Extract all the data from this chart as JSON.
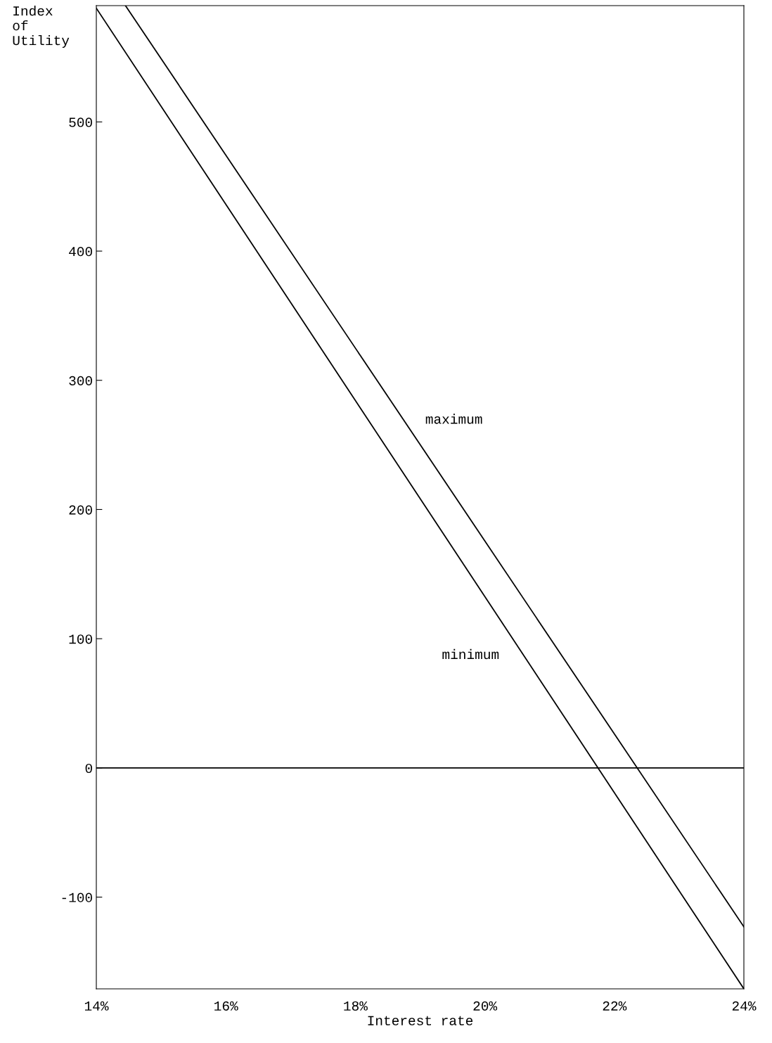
{
  "chart_data": {
    "type": "line",
    "xlabel": "Interest rate",
    "ylabel": "Index\nof\nUtility",
    "xlim": [
      14,
      24
    ],
    "ylim": [
      -171,
      590
    ],
    "xticks": [
      {
        "value": 14,
        "label": "14%"
      },
      {
        "value": 16,
        "label": "16%"
      },
      {
        "value": 18,
        "label": "18%"
      },
      {
        "value": 20,
        "label": "20%"
      },
      {
        "value": 22,
        "label": "22%"
      },
      {
        "value": 24,
        "label": "24%"
      }
    ],
    "yticks": [
      -100,
      0,
      100,
      200,
      300,
      400,
      500
    ],
    "series": [
      {
        "name": "maximum",
        "color": "#000000",
        "x": [
          14.45,
          24
        ],
        "values": [
          590,
          -123
        ]
      },
      {
        "name": "minimum",
        "color": "#000000",
        "x": [
          14,
          24
        ],
        "values": [
          588,
          -171
        ]
      }
    ],
    "ref_lines": [
      {
        "axis": "y",
        "value": 0,
        "color": "#000000"
      }
    ],
    "grid": false,
    "marker": "none",
    "line_style": "solid"
  }
}
